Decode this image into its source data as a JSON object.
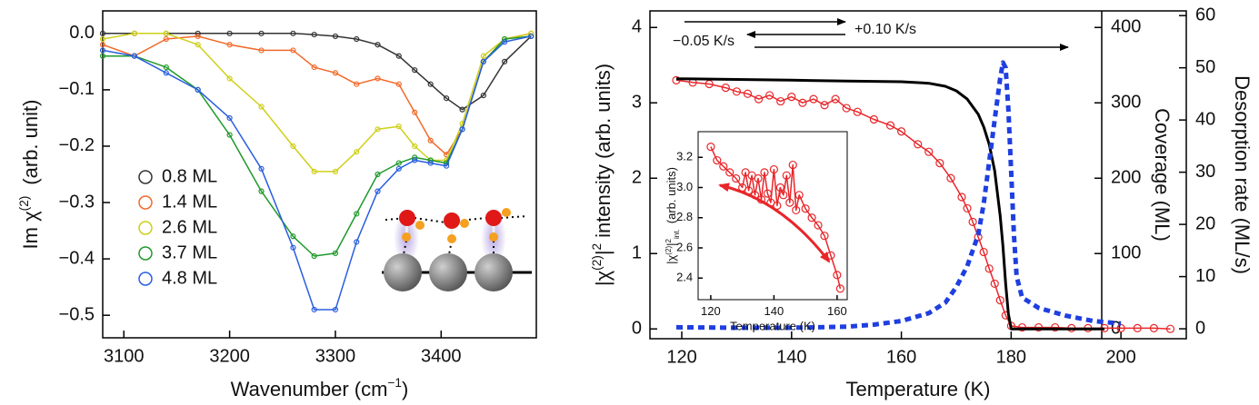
{
  "chart_data": [
    {
      "type": "line",
      "xlabel": {
        "text": "Wavenumber (cm",
        "sup": "−1",
        "end": ")"
      },
      "ylabel": {
        "text": "Im χ",
        "sup": "(2)",
        "unit": "(arb. unit)"
      },
      "xlim": [
        3080,
        3490
      ],
      "ylim": [
        -0.54,
        0.04
      ],
      "xticks": [
        3100,
        3200,
        3300,
        3400
      ],
      "yticks": [
        {
          "value": 0,
          "label": "0.0"
        },
        {
          "value": -0.1,
          "label": "−0.1"
        },
        {
          "value": -0.2,
          "label": "−0.2"
        },
        {
          "value": -0.3,
          "label": "−0.3"
        },
        {
          "value": -0.4,
          "label": "−0.4"
        },
        {
          "value": -0.5,
          "label": "−0.5"
        }
      ],
      "marker": "circle",
      "legend": "left",
      "x": [
        3080,
        3110,
        3140,
        3170,
        3200,
        3230,
        3260,
        3280,
        3300,
        3320,
        3340,
        3360,
        3375,
        3390,
        3405,
        3420,
        3440,
        3460,
        3485
      ],
      "series": [
        {
          "name": "0.8 ML",
          "color": "#333333",
          "values": [
            0,
            0,
            0,
            0,
            0,
            0,
            0,
            -0.002,
            -0.005,
            -0.01,
            -0.02,
            -0.04,
            -0.065,
            -0.09,
            -0.115,
            -0.135,
            -0.11,
            -0.05,
            -0.005
          ]
        },
        {
          "name": "1.4 ML",
          "color": "#f26a2a",
          "values": [
            -0.02,
            -0.04,
            -0.01,
            -0.005,
            -0.02,
            -0.03,
            -0.03,
            -0.06,
            -0.07,
            -0.09,
            -0.08,
            -0.09,
            -0.14,
            -0.19,
            -0.215,
            -0.17,
            -0.05,
            -0.01,
            0
          ]
        },
        {
          "name": "2.6 ML",
          "color": "#cfcf1a",
          "values": [
            -0.01,
            0,
            0,
            -0.02,
            -0.08,
            -0.13,
            -0.2,
            -0.245,
            -0.245,
            -0.21,
            -0.17,
            -0.165,
            -0.2,
            -0.225,
            -0.225,
            -0.16,
            -0.04,
            -0.01,
            0
          ]
        },
        {
          "name": "3.7 ML",
          "color": "#1f9a2a",
          "values": [
            -0.04,
            -0.04,
            -0.06,
            -0.1,
            -0.18,
            -0.28,
            -0.36,
            -0.395,
            -0.39,
            -0.32,
            -0.25,
            -0.23,
            -0.22,
            -0.225,
            -0.23,
            -0.17,
            -0.05,
            -0.01,
            -0.005
          ]
        },
        {
          "name": "4.8 ML",
          "color": "#2a5ee0",
          "values": [
            -0.03,
            -0.04,
            -0.07,
            -0.1,
            -0.15,
            -0.24,
            -0.38,
            -0.49,
            -0.49,
            -0.37,
            -0.28,
            -0.24,
            -0.225,
            -0.23,
            -0.235,
            -0.17,
            -0.05,
            -0.015,
            -0.005
          ]
        }
      ]
    },
    {
      "type": "line",
      "xlabel": "Temperature (K)",
      "ylabel": {
        "a": "|χ",
        "sup": "(2)",
        "b": "|",
        "pow": "2",
        "text": "intensity (arb. units)"
      },
      "y2label": "Coverage (ML)",
      "y3label": "Desorption rate (ML/s)",
      "annotations": [
        "−0.05 K/s",
        "+0.10 K/s"
      ],
      "xlim": [
        114.2,
        211.9
      ],
      "ylim": [
        -0.13,
        4.22
      ],
      "y2lim": [
        -13,
        422
      ],
      "y3lim": [
        -1.9,
        60.9
      ],
      "xticks": [
        120,
        140,
        160,
        180,
        200
      ],
      "yticks": [
        0,
        1,
        2,
        3,
        4
      ],
      "y2ticks": [
        0,
        100,
        200,
        300,
        400
      ],
      "y3ticks": [
        0,
        10,
        20,
        30,
        40,
        50,
        60
      ],
      "series": [
        {
          "color": "#e8262a",
          "marker": "circle",
          "x": [
            119,
            122,
            125,
            128,
            130,
            132,
            134,
            136,
            138,
            140,
            142,
            144,
            146,
            148,
            150,
            152,
            155,
            158,
            160,
            163,
            165,
            167,
            169,
            171,
            172,
            173,
            174,
            175,
            176,
            177,
            178,
            179,
            180,
            182,
            185,
            188,
            191,
            194,
            197,
            200,
            203,
            206,
            209
          ],
          "values": [
            3.3,
            3.27,
            3.25,
            3.2,
            3.15,
            3.12,
            3.05,
            3.1,
            3.02,
            3.08,
            3.0,
            3.05,
            2.97,
            3.05,
            2.93,
            2.88,
            2.78,
            2.7,
            2.62,
            2.45,
            2.35,
            2.2,
            2.0,
            1.75,
            1.6,
            1.42,
            1.22,
            1.02,
            0.8,
            0.6,
            0.38,
            0.18,
            0.04,
            0.02,
            0.02,
            0.02,
            0.01,
            0.01,
            0.01,
            0.01,
            0.01,
            0.01,
            0.0
          ]
        },
        {
          "color": "#000000",
          "axis": "y2",
          "x": [
            119,
            130,
            140,
            150,
            160,
            165,
            168,
            170,
            172,
            174,
            175,
            176,
            177,
            178,
            178.5,
            179,
            179.5,
            180,
            190,
            197
          ],
          "values": [
            332,
            331,
            330,
            329,
            328,
            326,
            322,
            316,
            305,
            285,
            268,
            245,
            210,
            150,
            110,
            60,
            20,
            0,
            0,
            0
          ]
        },
        {
          "color": "#1f3fe0",
          "axis": "y3",
          "dash": true,
          "x": [
            119,
            130,
            140,
            150,
            155,
            160,
            165,
            168,
            170,
            172,
            174,
            175,
            176,
            177,
            178,
            178.5,
            179,
            179.5,
            180,
            180.5,
            181,
            182,
            185,
            190,
            195,
            200
          ],
          "values": [
            0.3,
            0.2,
            0.2,
            0.4,
            0.8,
            1.5,
            3,
            5,
            8,
            12,
            18,
            24,
            32,
            40,
            48,
            51,
            50,
            42,
            30,
            18,
            10,
            6,
            4,
            2.5,
            1.5,
            1
          ]
        }
      ]
    },
    {
      "type": "line",
      "xlabel": "Temperature (K)",
      "ylabel": {
        "a": "|χ",
        "sup": "(2)",
        "b": "|",
        "pow": "2",
        "sub": "int.",
        "text": "(arb. units)"
      },
      "xlim": [
        116,
        163.2
      ],
      "ylim": [
        2.257,
        3.37
      ],
      "xticks": [
        120,
        140,
        160
      ],
      "yticks": [
        2.4,
        2.6,
        2.8,
        {
          "value": 3,
          "label": "3.0"
        },
        3.2
      ],
      "series": [
        {
          "color": "#e8262a",
          "marker": "circle",
          "x": [
            120,
            122,
            124,
            126,
            128,
            130,
            131,
            132,
            133,
            134,
            135,
            136,
            137,
            138,
            139,
            140,
            141,
            142,
            143,
            144,
            145,
            146,
            147,
            148,
            150,
            152,
            154,
            156,
            158,
            160,
            161
          ],
          "values": [
            3.27,
            3.18,
            3.14,
            3.1,
            3.06,
            3.0,
            3.1,
            2.98,
            3.08,
            2.95,
            3.06,
            2.92,
            3.1,
            2.96,
            2.9,
            3.12,
            2.88,
            3.0,
            2.95,
            3.08,
            2.9,
            3.15,
            2.85,
            2.95,
            2.86,
            2.8,
            2.75,
            2.68,
            2.55,
            2.42,
            2.33
          ]
        }
      ]
    }
  ]
}
